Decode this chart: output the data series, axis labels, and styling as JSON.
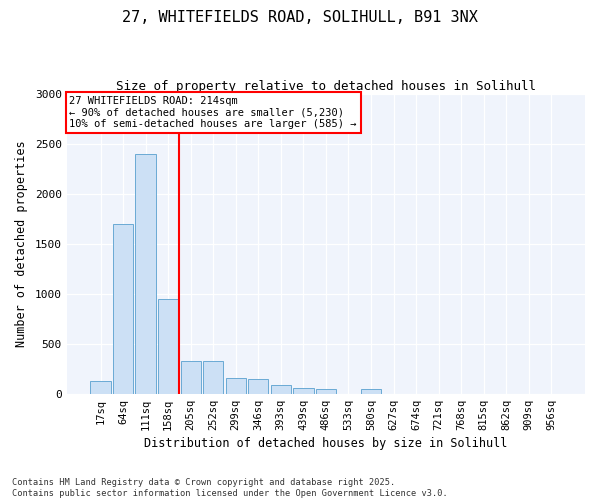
{
  "title_line1": "27, WHITEFIELDS ROAD, SOLIHULL, B91 3NX",
  "title_line2": "Size of property relative to detached houses in Solihull",
  "xlabel": "Distribution of detached houses by size in Solihull",
  "ylabel": "Number of detached properties",
  "bar_labels": [
    "17sq",
    "64sq",
    "111sq",
    "158sq",
    "205sq",
    "252sq",
    "299sq",
    "346sq",
    "393sq",
    "439sq",
    "486sq",
    "533sq",
    "580sq",
    "627sq",
    "674sq",
    "721sq",
    "768sq",
    "815sq",
    "862sq",
    "909sq",
    "956sq"
  ],
  "bar_values": [
    130,
    1700,
    2400,
    950,
    330,
    330,
    160,
    150,
    90,
    60,
    50,
    0,
    45,
    0,
    0,
    0,
    0,
    0,
    0,
    0,
    0
  ],
  "bar_color": "#cce0f5",
  "bar_edge_color": "#6aaad4",
  "vline_index": 3.5,
  "annotation_text_line1": "27 WHITEFIELDS ROAD: 214sqm",
  "annotation_text_line2": "← 90% of detached houses are smaller (5,230)",
  "annotation_text_line3": "10% of semi-detached houses are larger (585) →",
  "vline_color": "red",
  "ylim": [
    0,
    3000
  ],
  "yticks": [
    0,
    500,
    1000,
    1500,
    2000,
    2500,
    3000
  ],
  "footnote_line1": "Contains HM Land Registry data © Crown copyright and database right 2025.",
  "footnote_line2": "Contains public sector information licensed under the Open Government Licence v3.0.",
  "bg_color": "#ffffff",
  "plot_bg_color": "#f0f4fc"
}
